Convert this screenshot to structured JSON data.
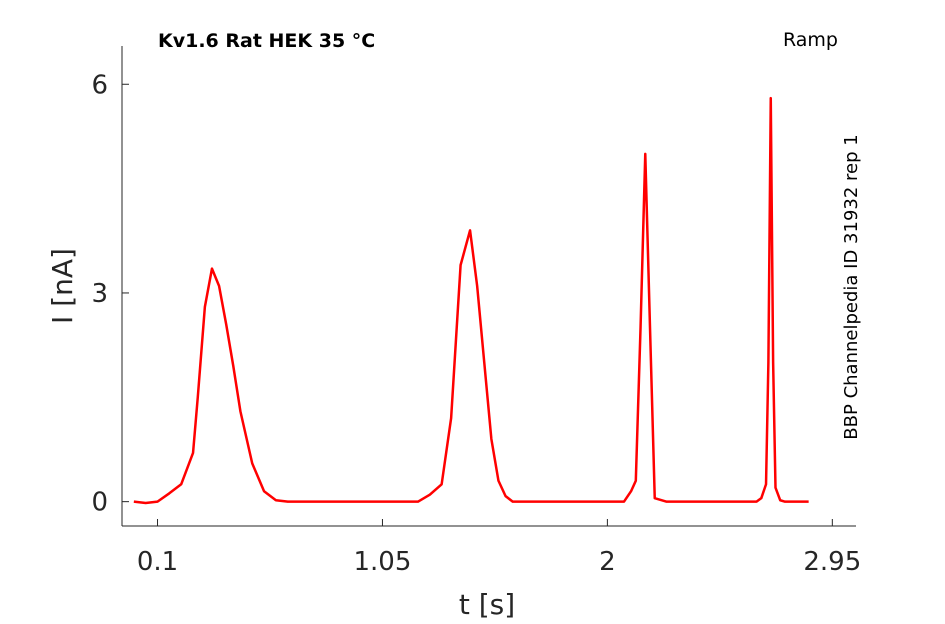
{
  "chart_data": {
    "type": "line",
    "title": "Kv1.6  Rat  HEK  35 °C",
    "corner_label": "Ramp",
    "side_label": "BBP Channelpedia ID 31932 rep 1",
    "xlabel": "t [s]",
    "ylabel": "I [nA]",
    "xlim": [
      -0.05,
      3.05
    ],
    "ylim": [
      -0.35,
      6.55
    ],
    "xticks": [
      0.1,
      1.05,
      2,
      2.95
    ],
    "xtick_labels": [
      "0.1",
      "1.05",
      "2",
      "2.95"
    ],
    "yticks": [
      0,
      3,
      6
    ],
    "ytick_labels": [
      "0",
      "3",
      "6"
    ],
    "grid": false,
    "line_color": "#ff0000",
    "series": [
      {
        "x": [
          0.0,
          0.05,
          0.1,
          0.15,
          0.2,
          0.25,
          0.27,
          0.3,
          0.33,
          0.36,
          0.39,
          0.42,
          0.45,
          0.5,
          0.55,
          0.6,
          0.65,
          0.7,
          0.75,
          0.8,
          0.82,
          0.85,
          0.9,
          0.95,
          1.0,
          1.05,
          1.1,
          1.15,
          1.2,
          1.25,
          1.3,
          1.34,
          1.38,
          1.42,
          1.45,
          1.48,
          1.51,
          1.54,
          1.57,
          1.6,
          1.65,
          1.7,
          1.75,
          1.8,
          1.85,
          1.9,
          1.95,
          2.0,
          2.05,
          2.07,
          2.1,
          2.12,
          2.14,
          2.16,
          2.18,
          2.2,
          2.25,
          2.3,
          2.35,
          2.4,
          2.45,
          2.5,
          2.55,
          2.6,
          2.63,
          2.65,
          2.67,
          2.68,
          2.69,
          2.7,
          2.71,
          2.73,
          2.75,
          2.8,
          2.85
        ],
        "y": [
          0.0,
          -0.02,
          0.0,
          0.12,
          0.25,
          0.7,
          1.5,
          2.8,
          3.35,
          3.1,
          2.55,
          1.95,
          1.3,
          0.55,
          0.15,
          0.02,
          0.0,
          0.0,
          0.0,
          0.0,
          0.0,
          0.0,
          0.0,
          0.0,
          0.0,
          0.0,
          0.0,
          0.0,
          0.0,
          0.1,
          0.25,
          1.2,
          3.4,
          3.9,
          3.1,
          2.0,
          0.9,
          0.3,
          0.08,
          0.0,
          0.0,
          0.0,
          0.0,
          0.0,
          0.0,
          0.0,
          0.0,
          0.0,
          0.0,
          0.0,
          0.15,
          0.3,
          2.5,
          5.0,
          2.5,
          0.05,
          0.0,
          0.0,
          0.0,
          0.0,
          0.0,
          0.0,
          0.0,
          0.0,
          0.0,
          0.05,
          0.25,
          2.0,
          5.8,
          2.0,
          0.2,
          0.02,
          0.0,
          0.0,
          0.0
        ]
      }
    ]
  }
}
